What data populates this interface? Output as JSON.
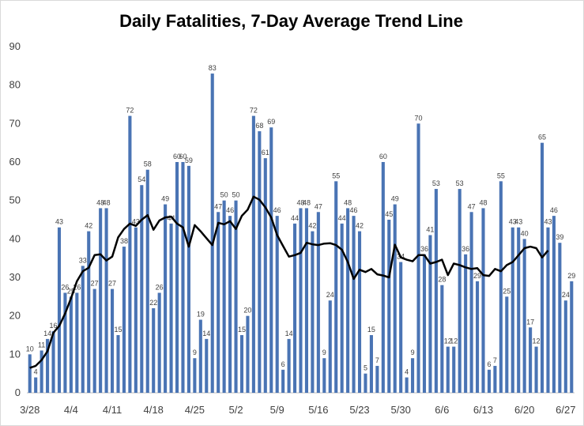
{
  "chart_data": {
    "type": "bar",
    "title": "Daily Fatalities, 7-Day Average Trend Line",
    "xlabel": "",
    "ylabel": "",
    "ylim": [
      0,
      90
    ],
    "yticks": [
      0,
      10,
      20,
      30,
      40,
      50,
      60,
      70,
      80,
      90
    ],
    "grid": false,
    "legend": "none",
    "x_tick_labels": [
      {
        "index": 0,
        "label": "3/28"
      },
      {
        "index": 7,
        "label": "4/4"
      },
      {
        "index": 14,
        "label": "4/11"
      },
      {
        "index": 21,
        "label": "4/18"
      },
      {
        "index": 28,
        "label": "4/25"
      },
      {
        "index": 35,
        "label": "5/2"
      },
      {
        "index": 42,
        "label": "5/9"
      },
      {
        "index": 49,
        "label": "5/16"
      },
      {
        "index": 56,
        "label": "5/23"
      },
      {
        "index": 63,
        "label": "5/30"
      },
      {
        "index": 70,
        "label": "6/6"
      },
      {
        "index": 77,
        "label": "6/13"
      },
      {
        "index": 84,
        "label": "6/20"
      },
      {
        "index": 91,
        "label": "6/27"
      }
    ],
    "series": [
      {
        "type": "bar",
        "color": "#4a74b4",
        "values": [
          10,
          4,
          11,
          14,
          16,
          43,
          26,
          25,
          26,
          33,
          42,
          27,
          48,
          48,
          27,
          15,
          38,
          72,
          43,
          54,
          58,
          22,
          26,
          49,
          44,
          60,
          60,
          59,
          9,
          19,
          14,
          83,
          47,
          50,
          46,
          50,
          15,
          20,
          72,
          68,
          61,
          69,
          46,
          6,
          14,
          44,
          48,
          48,
          42,
          47,
          9,
          24,
          55,
          44,
          48,
          46,
          42,
          5,
          15,
          7,
          60,
          45,
          49,
          34,
          4,
          9,
          70,
          36,
          41,
          53,
          28,
          12,
          12,
          53,
          36,
          47,
          29,
          48,
          6,
          7,
          55,
          25,
          43,
          43,
          40,
          17,
          12,
          65,
          43,
          46,
          39,
          24,
          29
        ]
      },
      {
        "type": "line",
        "color": "#000000",
        "values": [
          6.5,
          7.0,
          8.5,
          10.8,
          15.6,
          17.4,
          20.6,
          24.6,
          29.0,
          31.6,
          32.5,
          35.8,
          36.0,
          34.4,
          35.4,
          40.4,
          42.6,
          44.0,
          43.4,
          45.0,
          46.2,
          42.4,
          44.8,
          45.6,
          45.8,
          44.0,
          43.0,
          38.0,
          43.6,
          42.0,
          40.2,
          38.4,
          44.2,
          43.8,
          44.6,
          42.6,
          46.0,
          47.6,
          51.0,
          50.2,
          48.2,
          45.6,
          41.0,
          38.2,
          35.4,
          35.8,
          36.4,
          39.0,
          38.6,
          38.4,
          38.8,
          38.9,
          38.4,
          37.2,
          34.0,
          29.6,
          32.0,
          31.4,
          32.2,
          30.8,
          30.5,
          30.0,
          38.5,
          35.2,
          34.6,
          34.2,
          35.8,
          35.8,
          33.6,
          34.0,
          34.6,
          30.6,
          33.6,
          33.2,
          32.6,
          32.2,
          32.4,
          30.6,
          30.4,
          32.2,
          31.6,
          33.2,
          34.0,
          35.8,
          37.6,
          38.0,
          37.6,
          35.2,
          37.0
        ]
      }
    ]
  }
}
